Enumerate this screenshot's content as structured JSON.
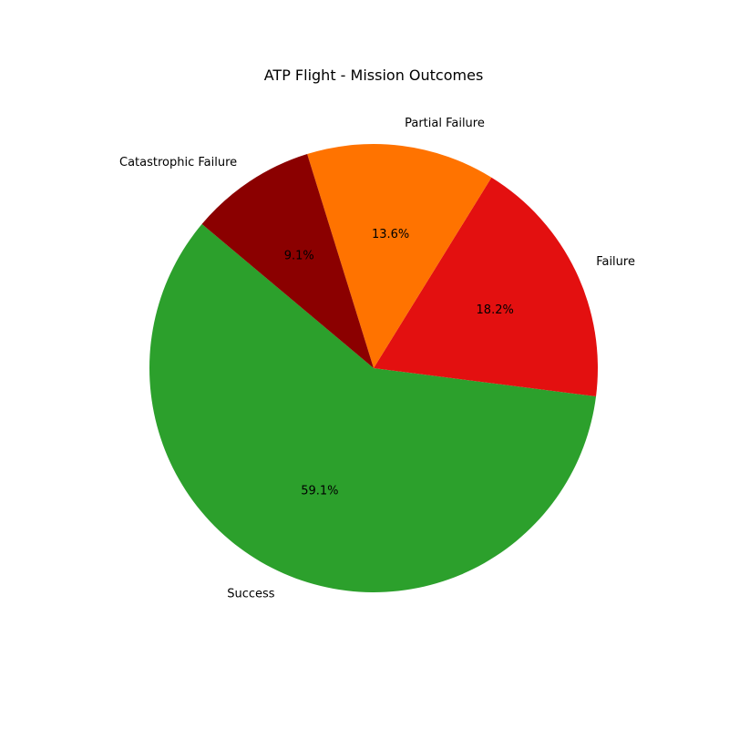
{
  "chart_data": {
    "type": "pie",
    "title": "ATP Flight - Mission Outcomes",
    "slices": [
      {
        "label": "Success",
        "value": 59.1,
        "pct_label": "59.1%",
        "color": "#2ca02c"
      },
      {
        "label": "Failure",
        "value": 18.2,
        "pct_label": "18.2%",
        "color": "#e31010"
      },
      {
        "label": "Partial Failure",
        "value": 13.6,
        "pct_label": "13.6%",
        "color": "#ff7300"
      },
      {
        "label": "Catastrophic Failure",
        "value": 9.1,
        "pct_label": "9.1%",
        "color": "#8b0000"
      }
    ]
  }
}
